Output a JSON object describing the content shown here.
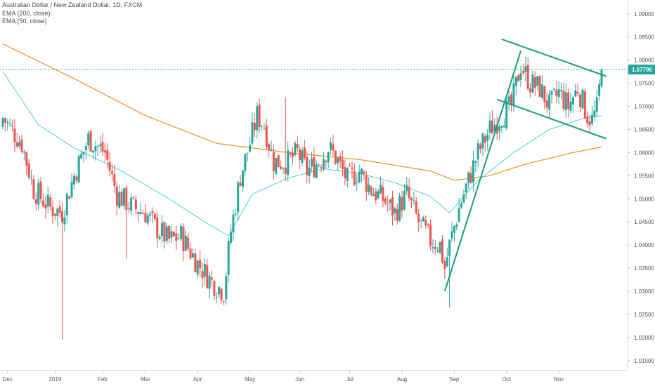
{
  "legend": {
    "title": "Australian Dollar / New Zealand Dollar, 1D, FXCM",
    "ema200": "EMA (200, close)",
    "ema50": "EMA (50, close)"
  },
  "colors": {
    "up": "#26a69a",
    "down": "#ef5350",
    "ema200": "#f28c28",
    "ema50": "#4dd0d6",
    "trendline": "#1a9e76",
    "price_line": "#26a69a",
    "axis_text": "#555555"
  },
  "current_price": {
    "label": "1.07796",
    "value": 1.07796
  },
  "chart_data": {
    "type": "candlestick",
    "title": "Australian Dollar / New Zealand Dollar, 1D, FXCM",
    "ylim": [
      1.013,
      1.093
    ],
    "y_ticks": [
      "1.09000",
      "1.08500",
      "1.08000",
      "1.07500",
      "1.07000",
      "1.06500",
      "1.06000",
      "1.05500",
      "1.05000",
      "1.04500",
      "1.04000",
      "1.03500",
      "1.03000",
      "1.02500",
      "1.02000",
      "1.01500"
    ],
    "x_ticks": [
      "Dec",
      "2019",
      "Feb",
      "Mar",
      "Apr",
      "May",
      "Jun",
      "Jul",
      "Aug",
      "Sep",
      "Oct",
      "Nov"
    ],
    "close_keypoints": [
      [
        0,
        1.0675
      ],
      [
        8,
        1.062
      ],
      [
        13,
        1.052
      ],
      [
        20,
        1.048
      ],
      [
        25,
        1.047
      ],
      [
        30,
        1.055
      ],
      [
        36,
        1.063
      ],
      [
        43,
        1.06
      ],
      [
        48,
        1.051
      ],
      [
        55,
        1.048
      ],
      [
        60,
        1.047
      ],
      [
        64,
        1.044
      ],
      [
        70,
        1.041
      ],
      [
        75,
        1.042
      ],
      [
        82,
        1.036
      ],
      [
        88,
        1.032
      ],
      [
        93,
        1.03
      ],
      [
        96,
        1.043
      ],
      [
        100,
        1.055
      ],
      [
        104,
        1.062
      ],
      [
        107,
        1.068
      ],
      [
        110,
        1.066
      ],
      [
        114,
        1.058
      ],
      [
        120,
        1.058
      ],
      [
        124,
        1.06
      ],
      [
        128,
        1.056
      ],
      [
        133,
        1.058
      ],
      [
        137,
        1.061
      ],
      [
        140,
        1.059
      ],
      [
        145,
        1.054
      ],
      [
        150,
        1.056
      ],
      [
        155,
        1.052
      ],
      [
        160,
        1.05
      ],
      [
        165,
        1.047
      ],
      [
        170,
        1.051
      ],
      [
        175,
        1.045
      ],
      [
        180,
        1.041
      ],
      [
        184,
        1.04
      ],
      [
        186,
        1.035
      ],
      [
        188,
        1.04
      ],
      [
        192,
        1.048
      ],
      [
        196,
        1.054
      ],
      [
        200,
        1.06
      ],
      [
        205,
        1.065
      ],
      [
        210,
        1.068
      ],
      [
        214,
        1.07
      ],
      [
        218,
        1.079
      ],
      [
        222,
        1.075
      ],
      [
        226,
        1.074
      ],
      [
        230,
        1.07
      ],
      [
        234,
        1.073
      ],
      [
        238,
        1.07
      ],
      [
        242,
        1.074
      ],
      [
        246,
        1.068
      ],
      [
        248,
        1.067
      ],
      [
        250,
        1.0695
      ],
      [
        252,
        1.07796
      ]
    ],
    "ema200_keypoints": [
      [
        0,
        1.0835
      ],
      [
        30,
        1.076
      ],
      [
        60,
        1.068
      ],
      [
        90,
        1.062
      ],
      [
        120,
        1.06
      ],
      [
        150,
        1.0585
      ],
      [
        180,
        1.056
      ],
      [
        190,
        1.054
      ],
      [
        205,
        1.055
      ],
      [
        220,
        1.0575
      ],
      [
        240,
        1.06
      ],
      [
        252,
        1.0612
      ]
    ],
    "ema50_keypoints": [
      [
        0,
        1.0775
      ],
      [
        15,
        1.066
      ],
      [
        30,
        1.061
      ],
      [
        50,
        1.056
      ],
      [
        70,
        1.05
      ],
      [
        85,
        1.045
      ],
      [
        95,
        1.042
      ],
      [
        105,
        1.051
      ],
      [
        120,
        1.0545
      ],
      [
        135,
        1.0565
      ],
      [
        150,
        1.0555
      ],
      [
        165,
        1.0535
      ],
      [
        180,
        1.0505
      ],
      [
        188,
        1.047
      ],
      [
        200,
        1.054
      ],
      [
        215,
        1.06
      ],
      [
        230,
        1.065
      ],
      [
        245,
        1.0675
      ],
      [
        252,
        1.068
      ]
    ],
    "trendlines": [
      {
        "x1": 186,
        "y1": 1.03,
        "x2": 218,
        "y2": 1.082
      },
      {
        "x1": 210,
        "y1": 1.0845,
        "x2": 254,
        "y2": 1.0765
      },
      {
        "x1": 208,
        "y1": 1.0715,
        "x2": 254,
        "y2": 1.063
      }
    ],
    "wick_spikes": [
      {
        "index": 25,
        "low": 1.0195
      },
      {
        "index": 52,
        "low": 1.037
      },
      {
        "index": 119,
        "high": 1.072
      },
      {
        "index": 188,
        "low": 1.0265
      }
    ]
  }
}
